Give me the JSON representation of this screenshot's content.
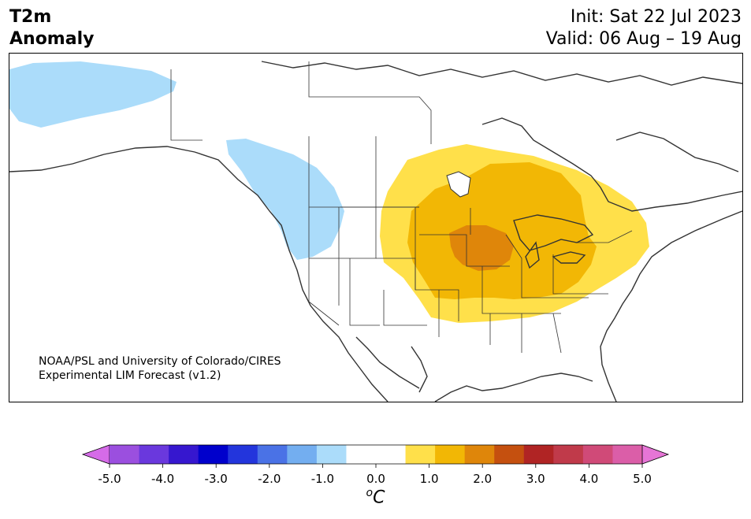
{
  "header": {
    "title_line1": "T2m",
    "title_line2": "Anomaly",
    "init": "Init: Sat 22 Jul 2023",
    "valid": "Valid: 06 Aug – 19 Aug"
  },
  "credit": {
    "line1": "NOAA/PSL and University of Colorado/CIRES",
    "line2": "Experimental LIM Forecast (v1.2)"
  },
  "colorbar": {
    "colors": [
      "#d56be8",
      "#9b4fdf",
      "#6a38dd",
      "#3617cf",
      "#0000cc",
      "#2335dc",
      "#4a72e6",
      "#73aef0",
      "#abdcfa",
      "#ffffff",
      "#ffffff",
      "#ffe04a",
      "#f2b705",
      "#df860a",
      "#c5500f",
      "#b02424",
      "#c03a4a",
      "#d04a78",
      "#db5ea8",
      "#e675d6"
    ],
    "ticks": [
      "-5.0",
      "-4.0",
      "-3.0",
      "-2.0",
      "-1.0",
      "0.0",
      "1.0",
      "2.0",
      "3.0",
      "4.0",
      "5.0"
    ],
    "unit_base": "C",
    "unit_sup": "o"
  },
  "anomaly_colors": {
    "cold": "#abdcfa",
    "warm1": "#ffe04a",
    "warm2": "#f2b705",
    "warm3": "#df860a"
  }
}
